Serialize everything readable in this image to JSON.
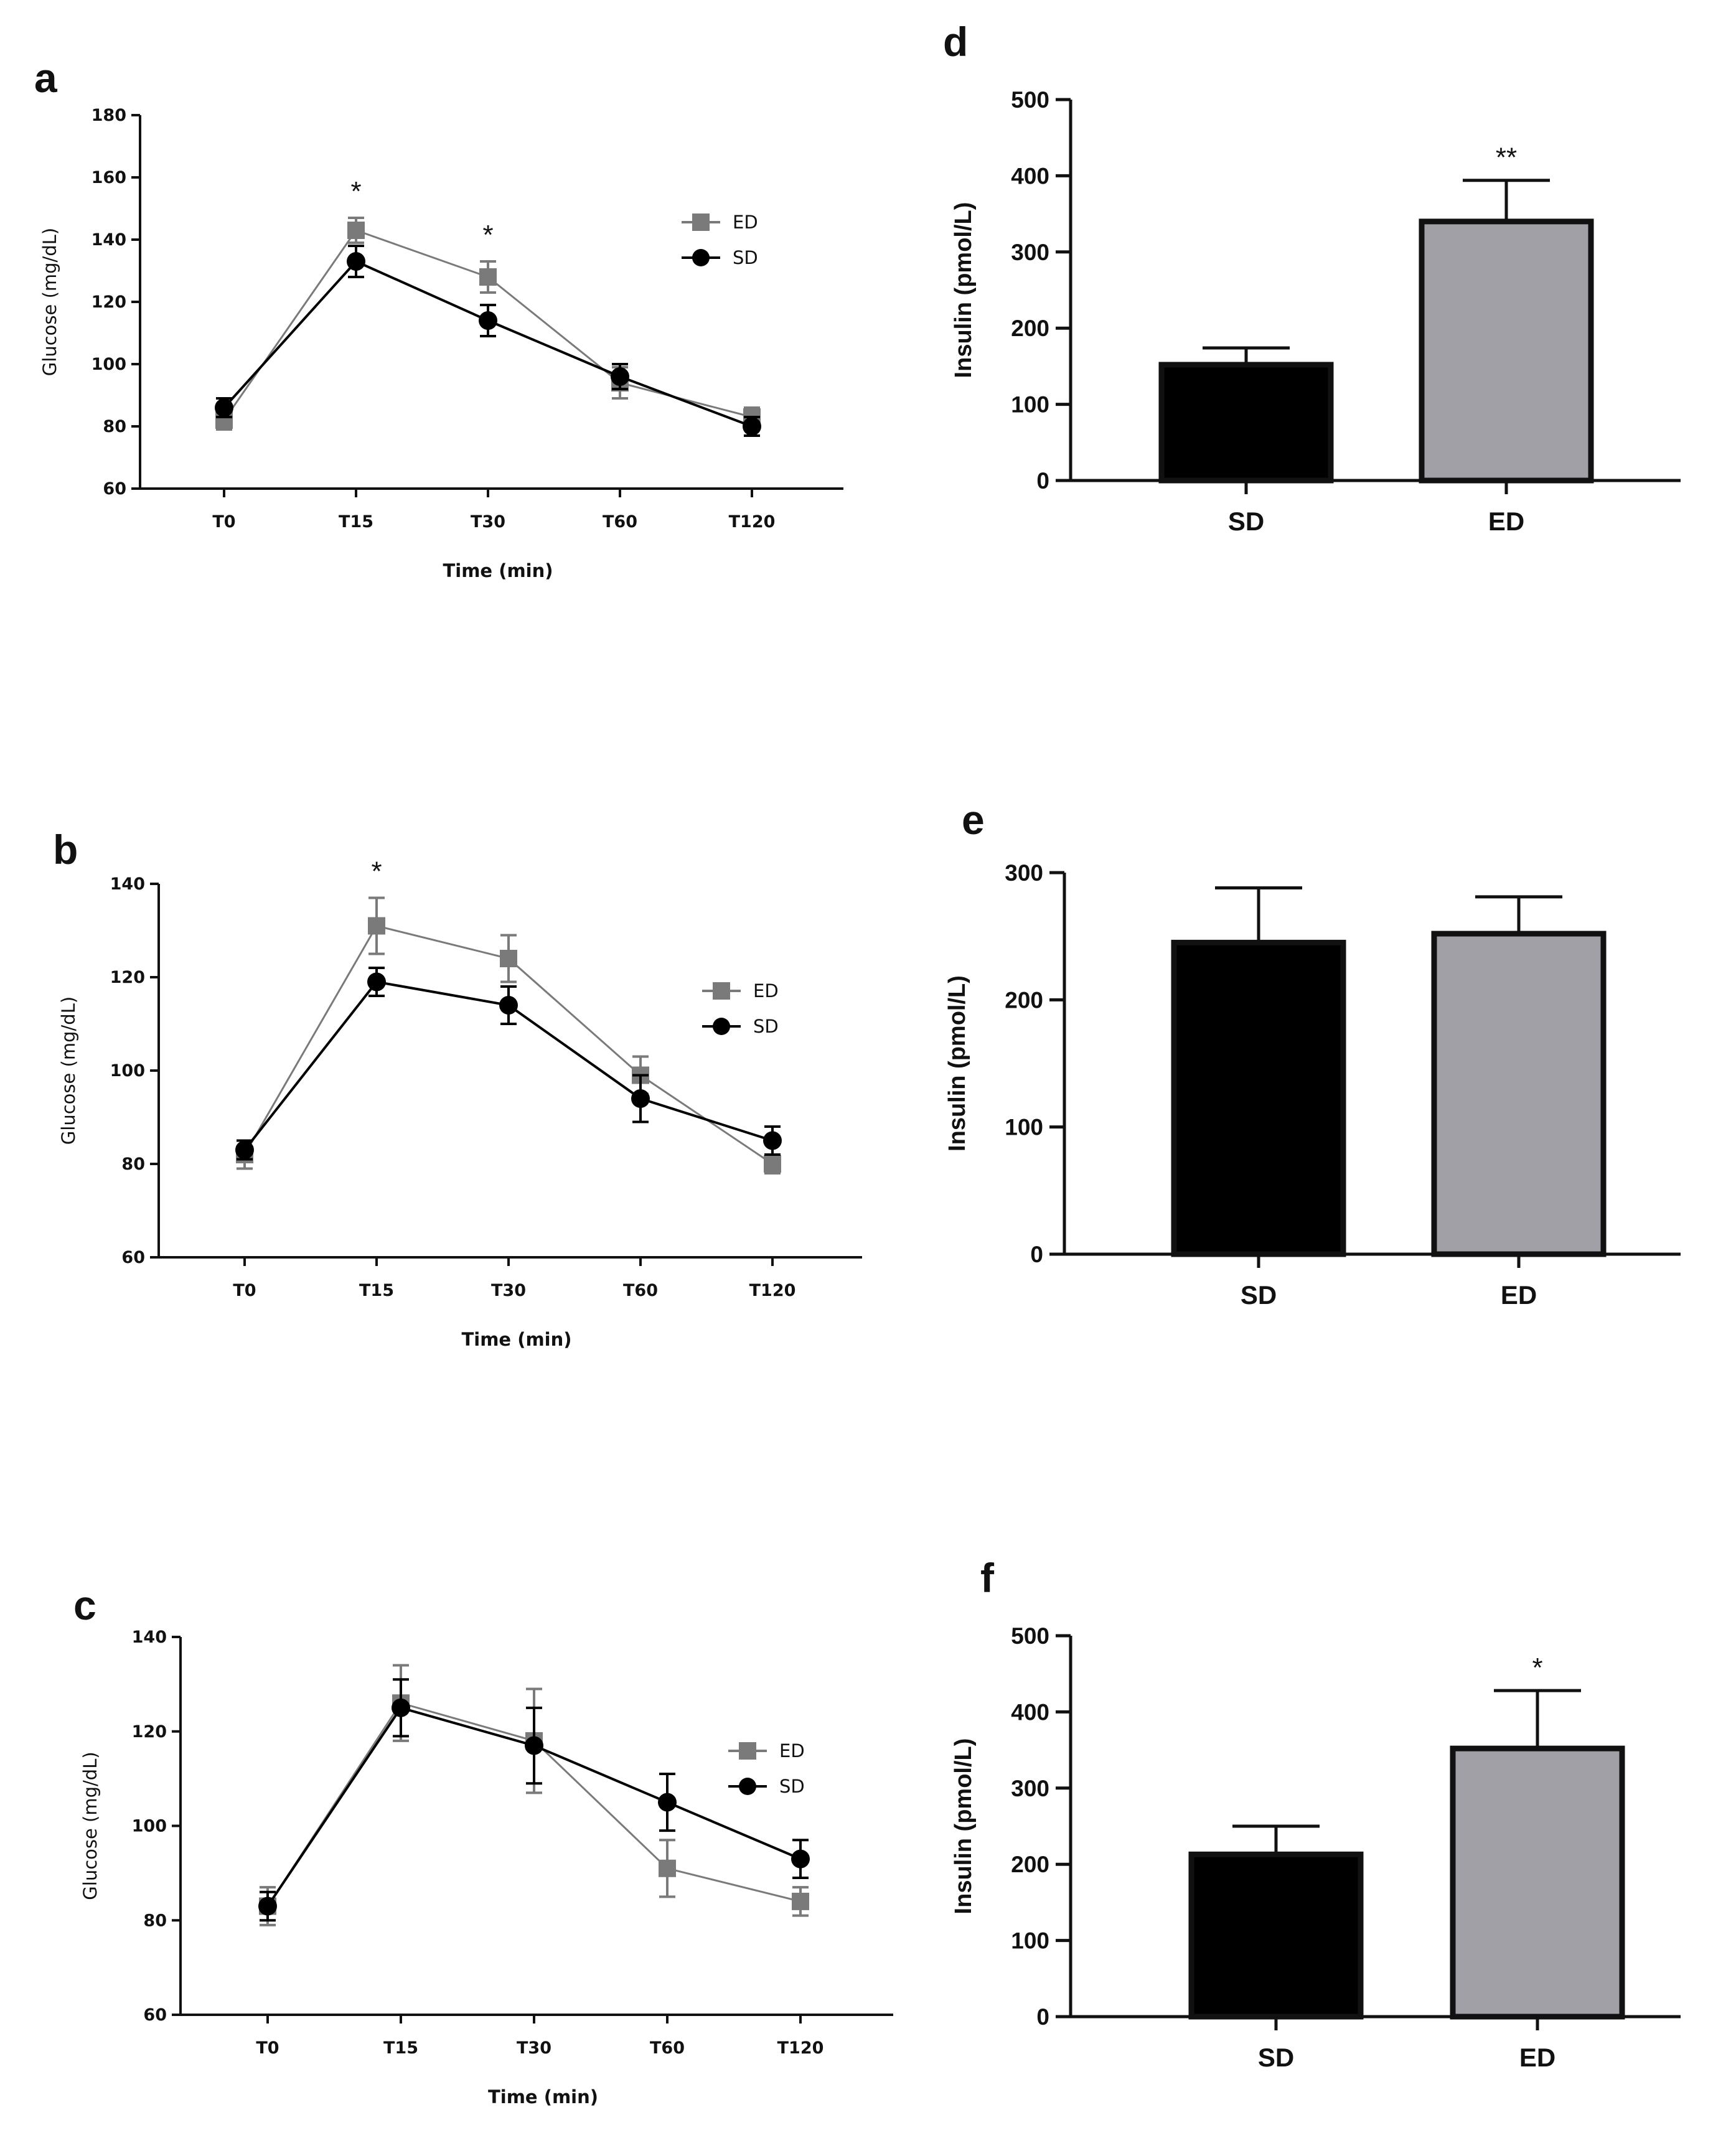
{
  "colors": {
    "ed": "#7a7a7a",
    "sd": "#000000",
    "ed_bar": "#a0a0a6",
    "sd_bar": "#000000",
    "axis": "#111111"
  },
  "chart_data": [
    {
      "panel": "a",
      "type": "line",
      "categories": [
        "T0",
        "T15",
        "T30",
        "T60",
        "T120"
      ],
      "xlabel": "Time (min)",
      "ylabel": "Glucose (mg/dL)",
      "ylim": [
        60,
        180
      ],
      "yticks": [
        60,
        80,
        100,
        120,
        140,
        160,
        180
      ],
      "legend_position": "top-right",
      "series": [
        {
          "name": "ED",
          "marker": "square",
          "values": [
            82,
            143,
            128,
            94,
            83
          ],
          "errors": [
            3,
            4,
            5,
            5,
            3
          ]
        },
        {
          "name": "SD",
          "marker": "circle",
          "values": [
            86,
            133,
            114,
            96,
            80
          ],
          "errors": [
            3,
            5,
            5,
            4,
            3
          ]
        }
      ],
      "annotations": [
        {
          "category": "T15",
          "text": "*"
        },
        {
          "category": "T30",
          "text": "*"
        }
      ]
    },
    {
      "panel": "b",
      "type": "line",
      "categories": [
        "T0",
        "T15",
        "T30",
        "T60",
        "T120"
      ],
      "xlabel": "Time (min)",
      "ylabel": "Glucose (mg/dL)",
      "ylim": [
        60,
        140
      ],
      "yticks": [
        60,
        80,
        100,
        120,
        140
      ],
      "legend_position": "right",
      "series": [
        {
          "name": "ED",
          "marker": "square",
          "values": [
            82,
            131,
            124,
            99,
            80
          ],
          "errors": [
            3,
            6,
            5,
            4,
            2
          ]
        },
        {
          "name": "SD",
          "marker": "circle",
          "values": [
            83,
            119,
            114,
            94,
            85
          ],
          "errors": [
            2,
            3,
            4,
            5,
            3
          ]
        }
      ],
      "annotations": [
        {
          "category": "T15",
          "text": "*"
        }
      ]
    },
    {
      "panel": "c",
      "type": "line",
      "categories": [
        "T0",
        "T15",
        "T30",
        "T60",
        "T120"
      ],
      "xlabel": "Time (min)",
      "ylabel": "Glucose (mg/dL)",
      "ylim": [
        60,
        140
      ],
      "yticks": [
        60,
        80,
        100,
        120,
        140
      ],
      "legend_position": "right",
      "series": [
        {
          "name": "ED",
          "marker": "square",
          "values": [
            83,
            126,
            118,
            91,
            84
          ],
          "errors": [
            4,
            8,
            11,
            6,
            3
          ]
        },
        {
          "name": "SD",
          "marker": "circle",
          "values": [
            83,
            125,
            117,
            105,
            93
          ],
          "errors": [
            3,
            6,
            8,
            6,
            4
          ]
        }
      ],
      "annotations": []
    },
    {
      "panel": "d",
      "type": "bar",
      "categories": [
        "SD",
        "ED"
      ],
      "values": [
        152,
        340
      ],
      "errors": [
        22,
        54
      ],
      "ylabel": "Insulin (pmol/L)",
      "ylim": [
        0,
        500
      ],
      "yticks": [
        0,
        100,
        200,
        300,
        400,
        500
      ],
      "annotations": [
        {
          "category": "ED",
          "text": "**"
        }
      ]
    },
    {
      "panel": "e",
      "type": "bar",
      "categories": [
        "SD",
        "ED"
      ],
      "values": [
        245,
        252
      ],
      "errors": [
        43,
        29
      ],
      "ylabel": "Insulin (pmol/L)",
      "ylim": [
        0,
        300
      ],
      "yticks": [
        0,
        100,
        200,
        300
      ],
      "annotations": []
    },
    {
      "panel": "f",
      "type": "bar",
      "categories": [
        "SD",
        "ED"
      ],
      "values": [
        213,
        352
      ],
      "errors": [
        37,
        76
      ],
      "ylabel": "Insulin (pmol/L)",
      "ylim": [
        0,
        500
      ],
      "yticks": [
        0,
        100,
        200,
        300,
        400,
        500
      ],
      "annotations": [
        {
          "category": "ED",
          "text": "*"
        }
      ]
    }
  ]
}
